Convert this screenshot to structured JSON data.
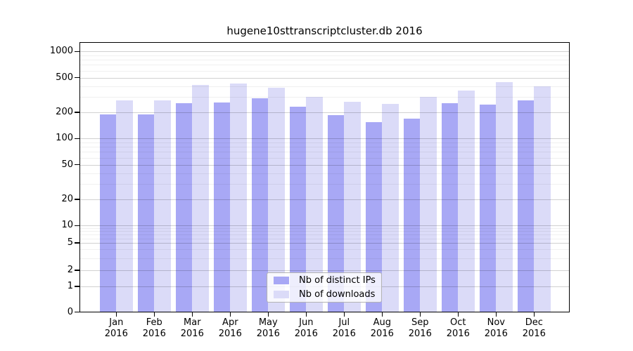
{
  "chart_data": {
    "type": "bar",
    "title": "hugene10sttranscriptcluster.db 2016",
    "categories": [
      "Jan",
      "Feb",
      "Mar",
      "Apr",
      "May",
      "Jun",
      "Jul",
      "Aug",
      "Sep",
      "Oct",
      "Nov",
      "Dec"
    ],
    "year": "2016",
    "series": [
      {
        "name": "Nb of distinct IPs",
        "color": "#a8a8f5",
        "values": [
          190,
          190,
          255,
          260,
          290,
          230,
          185,
          155,
          170,
          255,
          245,
          275
        ]
      },
      {
        "name": "Nb of downloads",
        "color": "#dbdbf8",
        "values": [
          275,
          275,
          410,
          425,
          380,
          300,
          265,
          250,
          300,
          355,
          440,
          400
        ]
      }
    ],
    "y_axis": {
      "scale": "symlog",
      "ticks": [
        0,
        1,
        2,
        5,
        10,
        20,
        50,
        100,
        200,
        500,
        1000
      ],
      "minor_ticks": [
        3,
        4,
        6,
        7,
        8,
        9,
        30,
        40,
        60,
        70,
        80,
        90,
        300,
        400,
        600,
        700,
        800,
        900
      ],
      "range": [
        0,
        1200
      ]
    },
    "legend": {
      "position": "lower center",
      "entries": [
        "Nb of distinct IPs",
        "Nb of downloads"
      ]
    },
    "grid": true
  }
}
